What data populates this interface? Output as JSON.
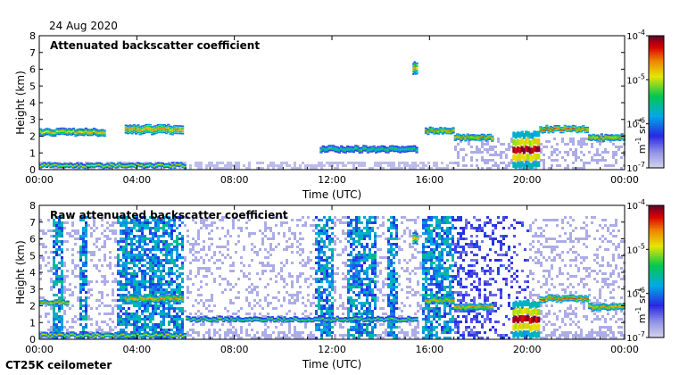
{
  "date": "24 Aug 2020",
  "instrument": "CT25K ceilometer",
  "chart_data": [
    {
      "type": "heatmap",
      "title": "Attenuated backscatter coefficient",
      "xlabel": "Time (UTC)",
      "ylabel": "Height (km)",
      "xlim": [
        "00:00",
        "24:00"
      ],
      "xticks": [
        "00:00",
        "04:00",
        "08:00",
        "12:00",
        "16:00",
        "20:00",
        "00:00"
      ],
      "ylim": [
        0,
        8
      ],
      "yticks": [
        "0",
        "1",
        "2",
        "3",
        "4",
        "5",
        "6",
        "7",
        "8"
      ],
      "colorbar": {
        "scale": "log",
        "range": [
          1e-07,
          0.0001
        ],
        "ticks": [
          {
            "base": "10",
            "exp": "-4"
          },
          {
            "base": "10",
            "exp": "-5"
          },
          {
            "base": "10",
            "exp": "-6"
          },
          {
            "base": "10",
            "exp": "-7"
          }
        ],
        "unit_main": "m",
        "unit_exp1": "-1",
        "unit_sr": "sr",
        "unit_exp2": "-1"
      },
      "features": [
        {
          "kind": "layer",
          "t0": 0.0,
          "t1": 2.7,
          "h": 2.2,
          "thick": 0.35,
          "level": 0.75
        },
        {
          "kind": "layer",
          "t0": 3.5,
          "t1": 5.9,
          "h": 2.35,
          "thick": 0.45,
          "level": 0.8
        },
        {
          "kind": "layer",
          "t0": 15.8,
          "t1": 17.0,
          "h": 2.3,
          "thick": 0.3,
          "level": 0.8
        },
        {
          "kind": "layer",
          "t0": 17.0,
          "t1": 18.6,
          "h": 1.9,
          "thick": 0.3,
          "level": 0.8
        },
        {
          "kind": "layer",
          "t0": 20.5,
          "t1": 22.5,
          "h": 2.4,
          "thick": 0.3,
          "level": 0.85
        },
        {
          "kind": "layer",
          "t0": 22.5,
          "t1": 24.0,
          "h": 1.9,
          "thick": 0.3,
          "level": 0.8
        },
        {
          "kind": "layer",
          "t0": 0.0,
          "t1": 6.0,
          "h": 0.25,
          "thick": 0.2,
          "level": 0.7
        },
        {
          "kind": "layer",
          "t0": 11.5,
          "t1": 15.5,
          "h": 1.2,
          "thick": 0.3,
          "level": 0.55
        },
        {
          "kind": "layer",
          "t0": 15.3,
          "t1": 15.5,
          "h": 6.0,
          "thick": 0.6,
          "level": 0.75
        },
        {
          "kind": "layer",
          "t0": 19.4,
          "t1": 20.5,
          "h": 1.0,
          "thick": 1.8,
          "level": 0.95
        }
      ]
    },
    {
      "type": "heatmap",
      "title": "Raw attenuated backscatter coefficient",
      "xlabel": "Time (UTC)",
      "ylabel": "Height (km)",
      "xlim": [
        "00:00",
        "24:00"
      ],
      "xticks": [
        "00:00",
        "04:00",
        "08:00",
        "12:00",
        "16:00",
        "20:00",
        "00:00"
      ],
      "ylim": [
        0,
        8
      ],
      "yticks": [
        "0",
        "1",
        "2",
        "3",
        "4",
        "5",
        "6",
        "7",
        "8"
      ],
      "colorbar": {
        "scale": "log",
        "range": [
          1e-07,
          0.0001
        ],
        "ticks": [
          {
            "base": "10",
            "exp": "-4"
          },
          {
            "base": "10",
            "exp": "-5"
          },
          {
            "base": "10",
            "exp": "-6"
          },
          {
            "base": "10",
            "exp": "-7"
          }
        ],
        "unit_main": "m",
        "unit_exp1": "-1",
        "unit_sr": "sr",
        "unit_exp2": "-1"
      },
      "features": [
        {
          "kind": "layer",
          "t0": 0.0,
          "t1": 1.2,
          "h": 2.2,
          "thick": 0.2,
          "level": 0.8
        },
        {
          "kind": "layer",
          "t0": 3.5,
          "t1": 5.9,
          "h": 2.4,
          "thick": 0.35,
          "level": 0.8
        },
        {
          "kind": "layer",
          "t0": 15.8,
          "t1": 17.0,
          "h": 2.3,
          "thick": 0.3,
          "level": 0.8
        },
        {
          "kind": "layer",
          "t0": 17.0,
          "t1": 18.6,
          "h": 1.9,
          "thick": 0.3,
          "level": 0.8
        },
        {
          "kind": "layer",
          "t0": 20.5,
          "t1": 22.5,
          "h": 2.4,
          "thick": 0.3,
          "level": 0.85
        },
        {
          "kind": "layer",
          "t0": 22.5,
          "t1": 24.0,
          "h": 1.9,
          "thick": 0.3,
          "level": 0.8
        },
        {
          "kind": "layer",
          "t0": 0.0,
          "t1": 6.0,
          "h": 0.25,
          "thick": 0.2,
          "level": 0.7
        },
        {
          "kind": "layer",
          "t0": 6.0,
          "t1": 15.5,
          "h": 1.2,
          "thick": 0.2,
          "level": 0.6
        },
        {
          "kind": "layer",
          "t0": 15.3,
          "t1": 15.5,
          "h": 6.0,
          "thick": 0.6,
          "level": 0.75
        },
        {
          "kind": "layer",
          "t0": 19.4,
          "t1": 20.5,
          "h": 1.0,
          "thick": 1.8,
          "level": 0.95
        }
      ],
      "noise_bands": [
        [
          0.5,
          0.9
        ],
        [
          1.6,
          1.9
        ],
        [
          3.1,
          5.9
        ],
        [
          11.2,
          12.0
        ],
        [
          12.6,
          13.8
        ],
        [
          14.2,
          14.6
        ],
        [
          15.6,
          17.2
        ]
      ]
    }
  ]
}
